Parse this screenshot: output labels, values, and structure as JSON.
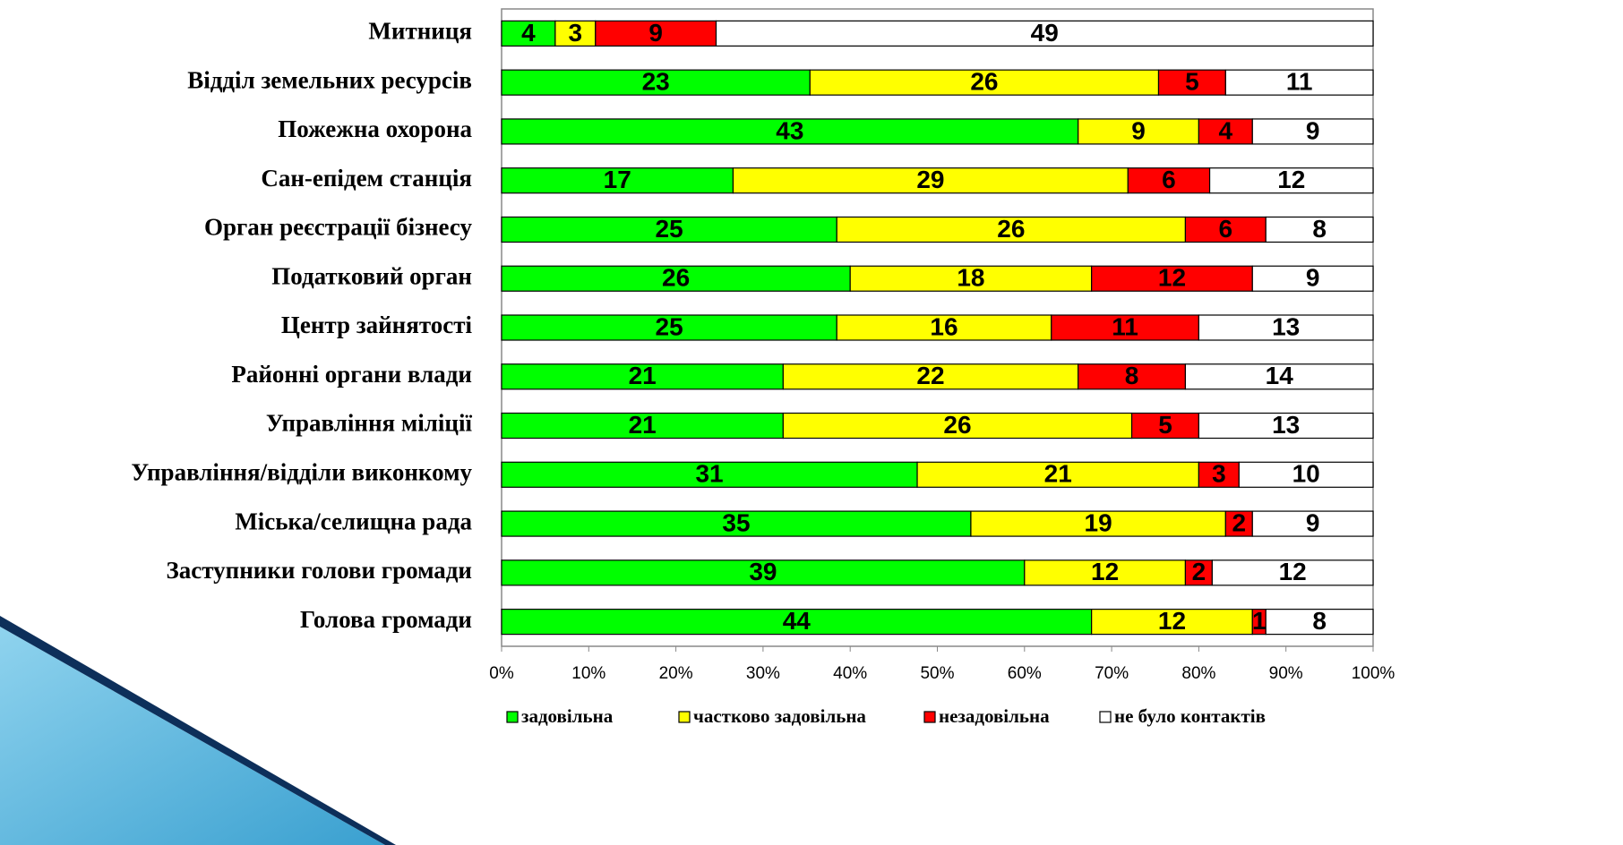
{
  "chart_data": {
    "type": "bar",
    "orientation": "horizontal",
    "stacked": "percent",
    "categories": [
      "Митниця",
      "Відділ земельних ресурсів",
      "Пожежна охорона",
      "Сан-епідем станція",
      "Орган реєстрації бізнесу",
      "Податковий орган",
      "Центр зайнятості",
      "Районні органи влади",
      "Управління міліції",
      "Управління/відділи виконкому",
      "Міська/селищна рада",
      "Заступники голови громади",
      "Голова громади"
    ],
    "series": [
      {
        "name": "задовільна",
        "color": "#00ff00",
        "values": [
          4,
          23,
          43,
          17,
          25,
          26,
          25,
          21,
          21,
          31,
          35,
          39,
          44
        ]
      },
      {
        "name": "частково задовільна",
        "color": "#ffff00",
        "values": [
          3,
          26,
          9,
          29,
          26,
          18,
          16,
          22,
          26,
          21,
          19,
          12,
          12
        ]
      },
      {
        "name": "незадовільна",
        "color": "#ff0000",
        "values": [
          9,
          5,
          4,
          6,
          6,
          12,
          11,
          8,
          5,
          3,
          2,
          2,
          1
        ]
      },
      {
        "name": "не було контактів",
        "color": "#ffffff",
        "values": [
          49,
          11,
          9,
          12,
          8,
          9,
          13,
          14,
          13,
          10,
          9,
          12,
          8
        ]
      }
    ],
    "xlim": [
      0,
      100
    ],
    "xticks": [
      {
        "value": 0,
        "label": "0%"
      },
      {
        "value": 10,
        "label": "10%"
      },
      {
        "value": 20,
        "label": "20%"
      },
      {
        "value": 30,
        "label": "30%"
      },
      {
        "value": 40,
        "label": "40%"
      },
      {
        "value": 50,
        "label": "50%"
      },
      {
        "value": 60,
        "label": "60%"
      },
      {
        "value": 70,
        "label": "70%"
      },
      {
        "value": 80,
        "label": "80%"
      },
      {
        "value": 90,
        "label": "90%"
      },
      {
        "value": 100,
        "label": "100%"
      }
    ],
    "legend": "bottom"
  }
}
